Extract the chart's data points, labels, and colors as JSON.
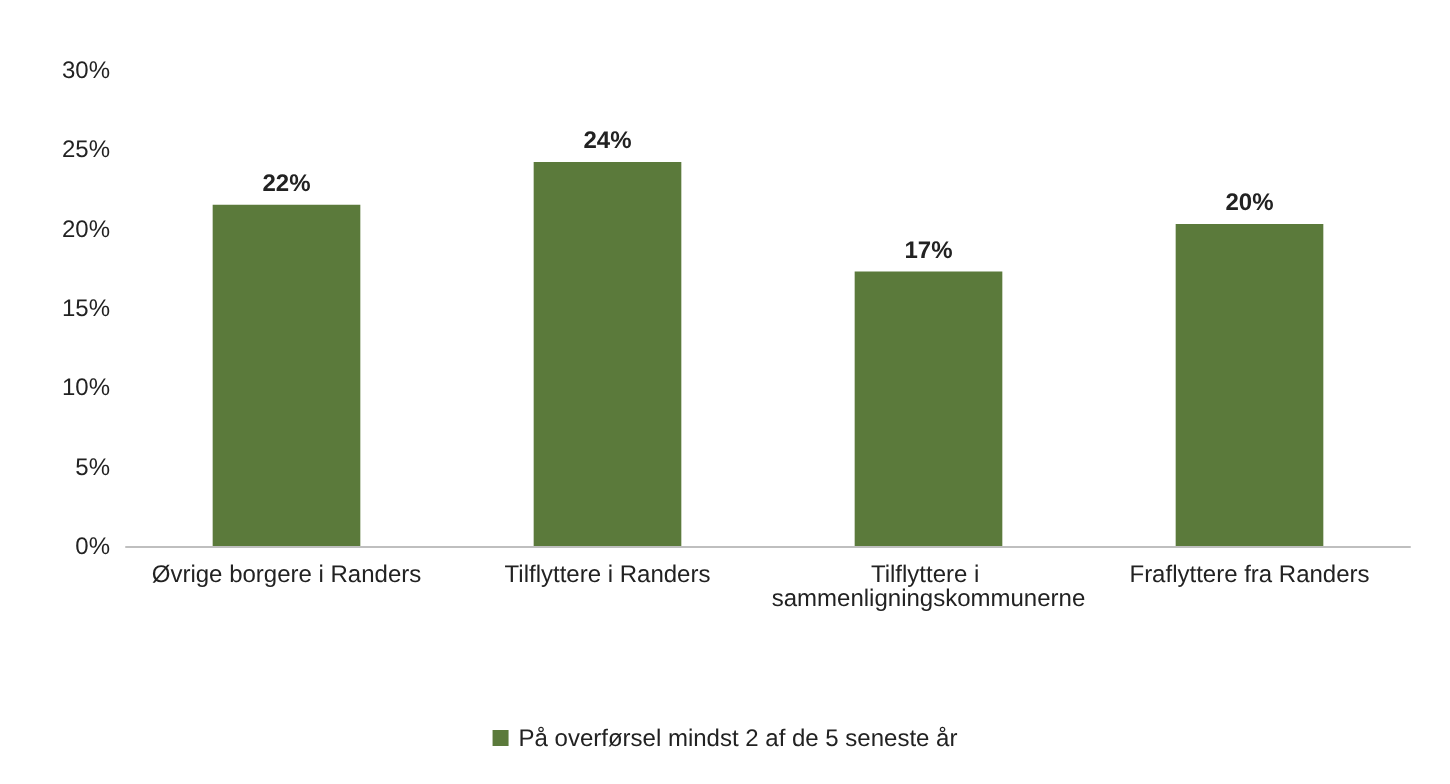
{
  "chart_data": {
    "type": "bar",
    "categories": [
      "Øvrige borgere i Randers",
      "Tilflyttere i Randers",
      "Tilflyttere i sammenligningskommunerne",
      "Fraflyttere fra Randers"
    ],
    "series": [
      {
        "name": "På overførsel mindst 2 af de 5 seneste år",
        "color": "#5b7a3b",
        "values": [
          21.5,
          24.2,
          17.3,
          20.3
        ],
        "value_labels": [
          "22%",
          "24%",
          "17%",
          "20%"
        ]
      }
    ],
    "ylim": [
      0,
      30
    ],
    "yticks": [
      {
        "value": 0,
        "label": "0%"
      },
      {
        "value": 5,
        "label": "5%"
      },
      {
        "value": 10,
        "label": "10%"
      },
      {
        "value": 15,
        "label": "15%"
      },
      {
        "value": 20,
        "label": "20%"
      },
      {
        "value": 25,
        "label": "25%"
      },
      {
        "value": 30,
        "label": "30%"
      }
    ],
    "grid": false,
    "legend": "bottom"
  }
}
